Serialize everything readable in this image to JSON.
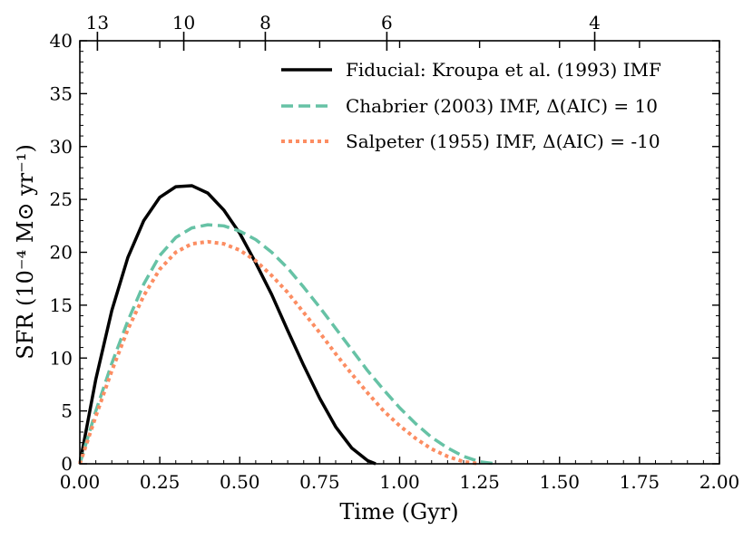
{
  "chart_data": {
    "type": "line",
    "title": "",
    "xlabel": "Time (Gyr)",
    "ylabel": "SFR (10⁻⁴ M⊙ yr⁻¹)",
    "xlim": [
      0.0,
      2.0
    ],
    "ylim": [
      0,
      40
    ],
    "xticks": [
      0.0,
      0.25,
      0.5,
      0.75,
      1.0,
      1.25,
      1.5,
      1.75,
      2.0
    ],
    "xtick_labels": [
      "0.00",
      "0.25",
      "0.50",
      "0.75",
      "1.00",
      "1.25",
      "1.50",
      "1.75",
      "2.00"
    ],
    "yticks": [
      0,
      5,
      10,
      15,
      20,
      25,
      30,
      35,
      40
    ],
    "ytick_labels": [
      "0",
      "5",
      "10",
      "15",
      "20",
      "25",
      "30",
      "35",
      "40"
    ],
    "top_axis": {
      "tick_labels": [
        "13",
        "10",
        "8",
        "6",
        "4"
      ],
      "tick_time_positions": [
        0.055,
        0.325,
        0.58,
        0.96,
        1.61
      ]
    },
    "legend_position": "top-right",
    "series": [
      {
        "name": "Fiducial: Kroupa et al. (1993) IMF",
        "color": "#000000",
        "style": "solid",
        "x": [
          0.0,
          0.05,
          0.1,
          0.15,
          0.2,
          0.25,
          0.3,
          0.35,
          0.4,
          0.45,
          0.5,
          0.55,
          0.6,
          0.65,
          0.7,
          0.75,
          0.8,
          0.85,
          0.9,
          0.925
        ],
        "y": [
          0.0,
          8.0,
          14.5,
          19.5,
          23.0,
          25.2,
          26.2,
          26.3,
          25.6,
          24.0,
          21.8,
          19.0,
          16.0,
          12.6,
          9.3,
          6.2,
          3.5,
          1.5,
          0.3,
          0.0
        ]
      },
      {
        "name": "Chabrier (2003) IMF, Δ(AIC) = 10",
        "color": "#66c2a5",
        "style": "dashed",
        "x": [
          0.0,
          0.05,
          0.1,
          0.15,
          0.2,
          0.25,
          0.3,
          0.35,
          0.4,
          0.45,
          0.5,
          0.55,
          0.6,
          0.65,
          0.7,
          0.75,
          0.8,
          0.85,
          0.9,
          0.95,
          1.0,
          1.05,
          1.1,
          1.15,
          1.2,
          1.25,
          1.3
        ],
        "y": [
          0.0,
          5.0,
          9.5,
          13.5,
          17.0,
          19.7,
          21.4,
          22.3,
          22.6,
          22.5,
          22.0,
          21.2,
          20.0,
          18.5,
          16.7,
          14.8,
          12.8,
          10.8,
          8.8,
          7.0,
          5.3,
          3.8,
          2.5,
          1.5,
          0.7,
          0.2,
          0.0
        ]
      },
      {
        "name": "Salpeter (1955) IMF, Δ(AIC) = -10",
        "color": "#fc8d62",
        "style": "dotted",
        "x": [
          0.0,
          0.05,
          0.1,
          0.15,
          0.2,
          0.25,
          0.3,
          0.35,
          0.4,
          0.45,
          0.5,
          0.55,
          0.6,
          0.65,
          0.7,
          0.75,
          0.8,
          0.85,
          0.9,
          0.95,
          1.0,
          1.05,
          1.1,
          1.15,
          1.2,
          1.25
        ],
        "y": [
          0.0,
          4.5,
          8.8,
          12.7,
          15.9,
          18.4,
          20.0,
          20.8,
          21.0,
          20.8,
          20.2,
          19.2,
          17.8,
          16.2,
          14.3,
          12.4,
          10.4,
          8.5,
          6.7,
          5.0,
          3.6,
          2.4,
          1.4,
          0.7,
          0.2,
          0.0
        ]
      }
    ]
  }
}
